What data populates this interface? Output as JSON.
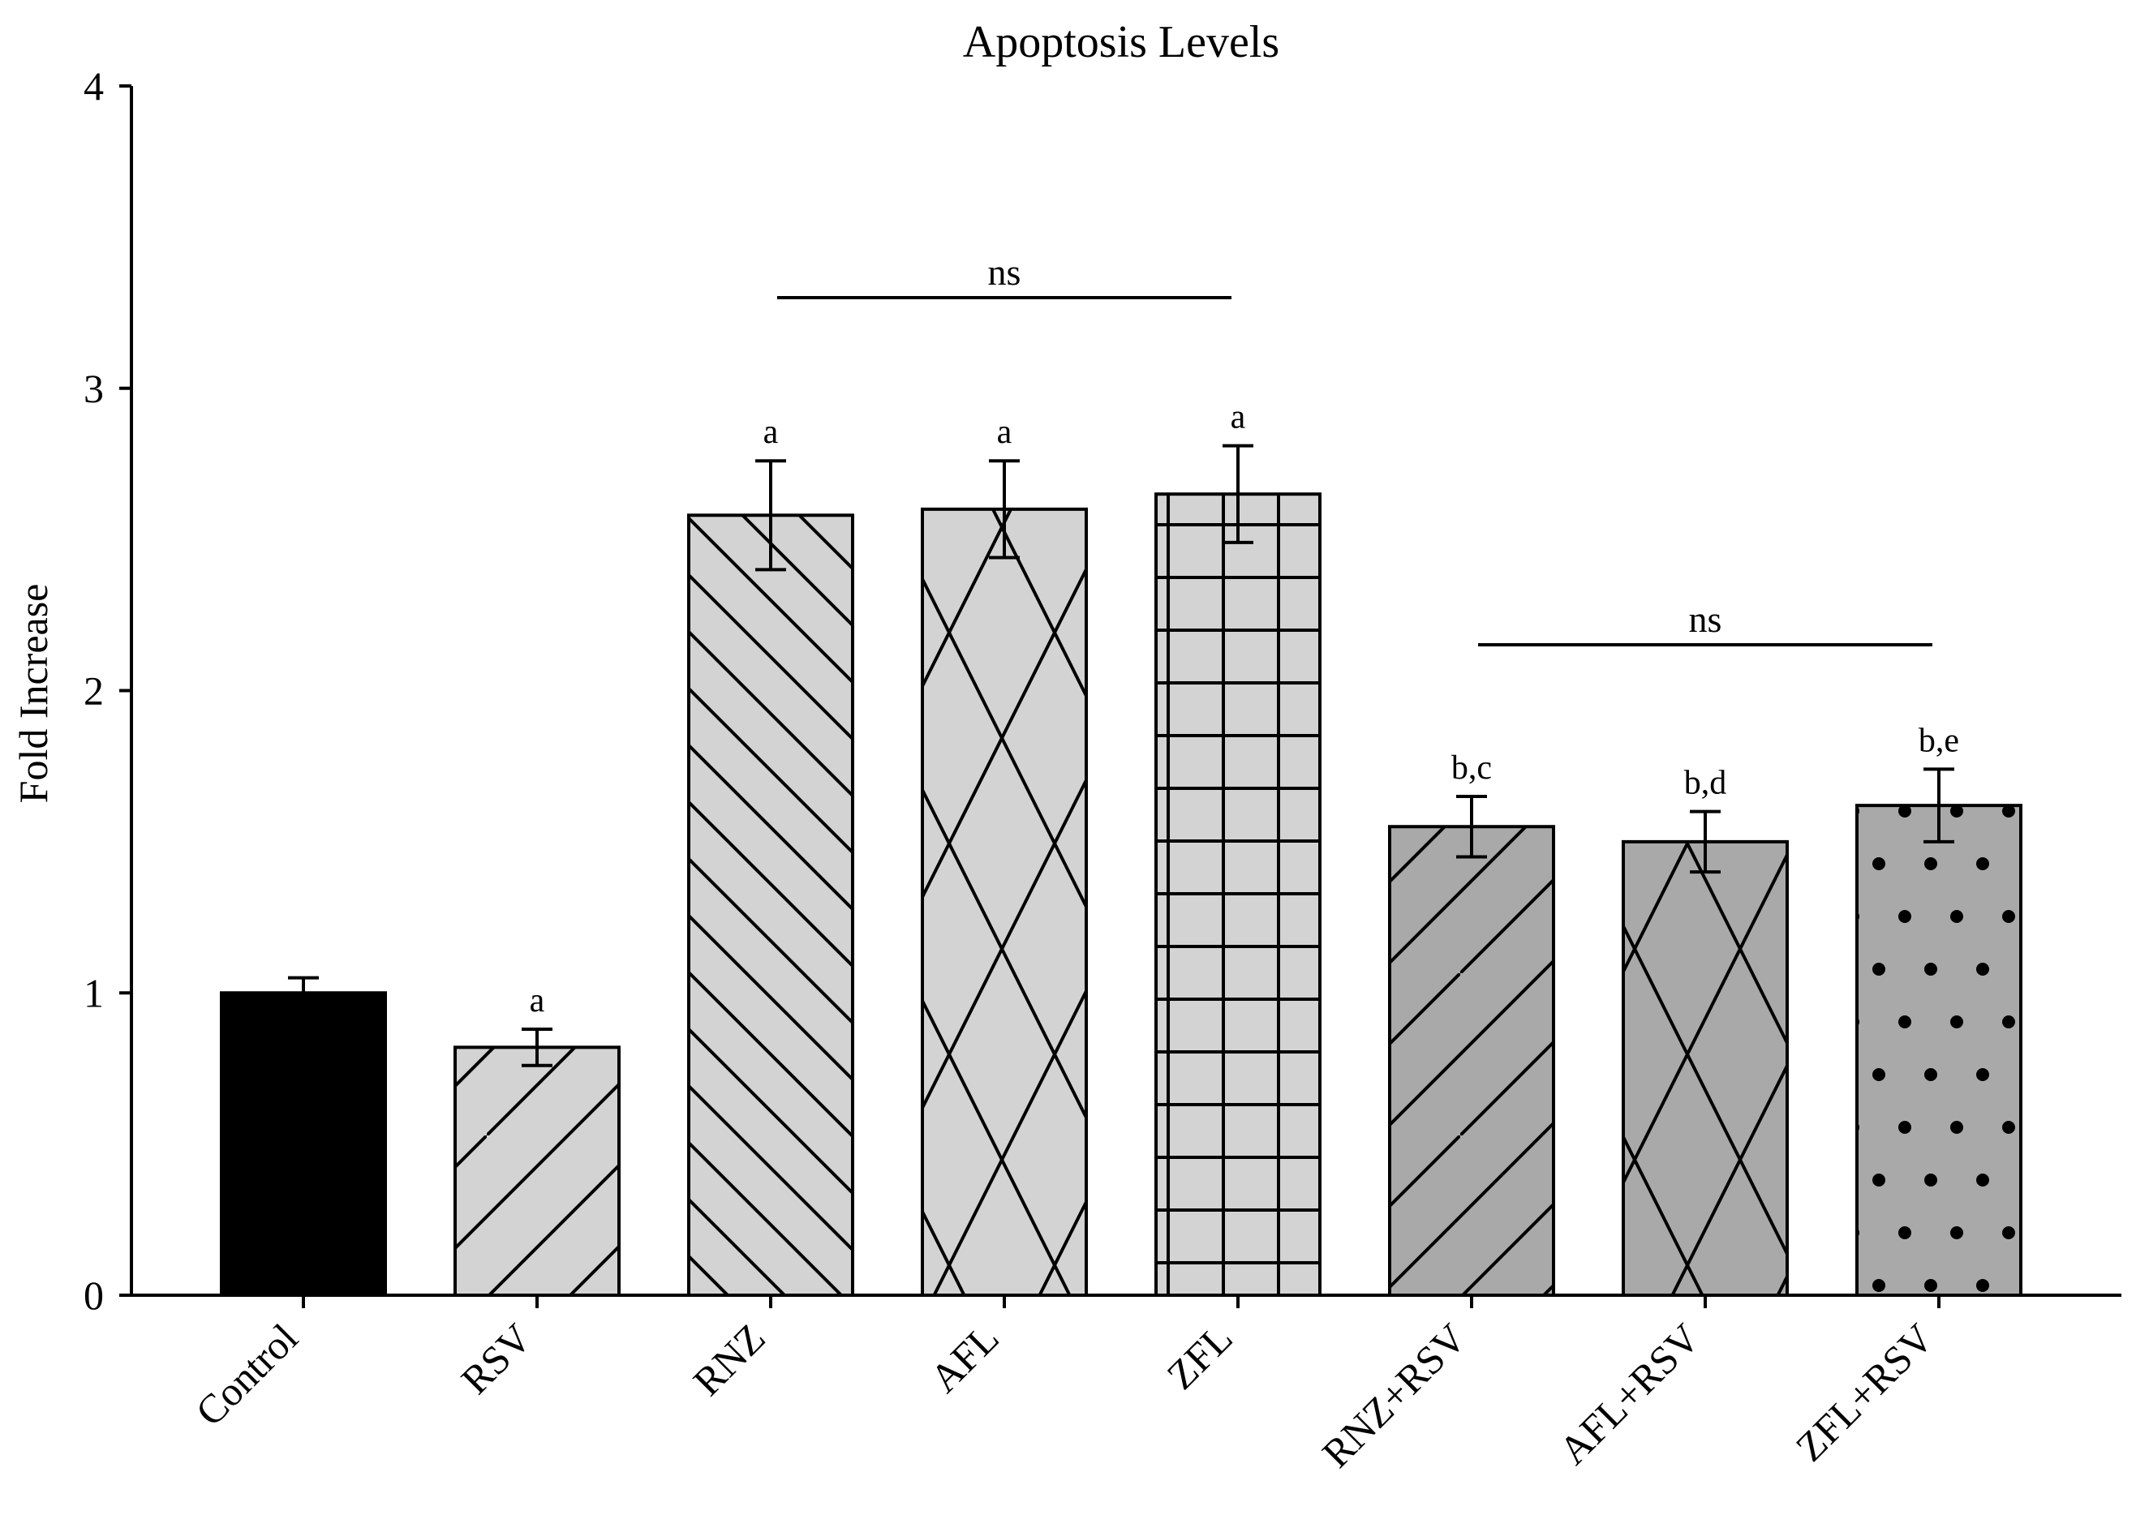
{
  "chart_data": {
    "type": "bar",
    "title": "Apoptosis Levels",
    "xlabel": "",
    "ylabel": "Fold Increase",
    "ylim": [
      0,
      4
    ],
    "yticks": [
      "0",
      "1",
      "2",
      "3",
      "4"
    ],
    "categories": [
      "Control",
      "RSV",
      "RNZ",
      "AFL",
      "ZFL",
      "RNZ+RSV",
      "AFL+RSV",
      "ZFL+RSV"
    ],
    "values": [
      1.0,
      0.82,
      2.58,
      2.6,
      2.65,
      1.55,
      1.5,
      1.62
    ],
    "errors": [
      0.05,
      0.06,
      0.18,
      0.16,
      0.16,
      0.1,
      0.1,
      0.12
    ],
    "annotations": [
      "",
      "a",
      "a",
      "a",
      "a",
      "b,c",
      "b,d",
      "b,e"
    ],
    "colors": [
      "#000000",
      "#d3d3d3",
      "#d3d3d3",
      "#d3d3d3",
      "#d3d3d3",
      "#a9a9a9",
      "#a9a9a9",
      "#a9a9a9"
    ],
    "patterns": [
      "solid",
      "forward-hatch",
      "back-hatch",
      "crosshatch-diamond",
      "grid",
      "forward-hatch",
      "crosshatch-diamond",
      "dots"
    ],
    "significance_brackets": [
      {
        "from": "RNZ",
        "to": "ZFL",
        "label": "ns"
      },
      {
        "from": "RNZ+RSV",
        "to": "ZFL+RSV",
        "label": "ns"
      }
    ],
    "grid": false,
    "legend": "none"
  }
}
